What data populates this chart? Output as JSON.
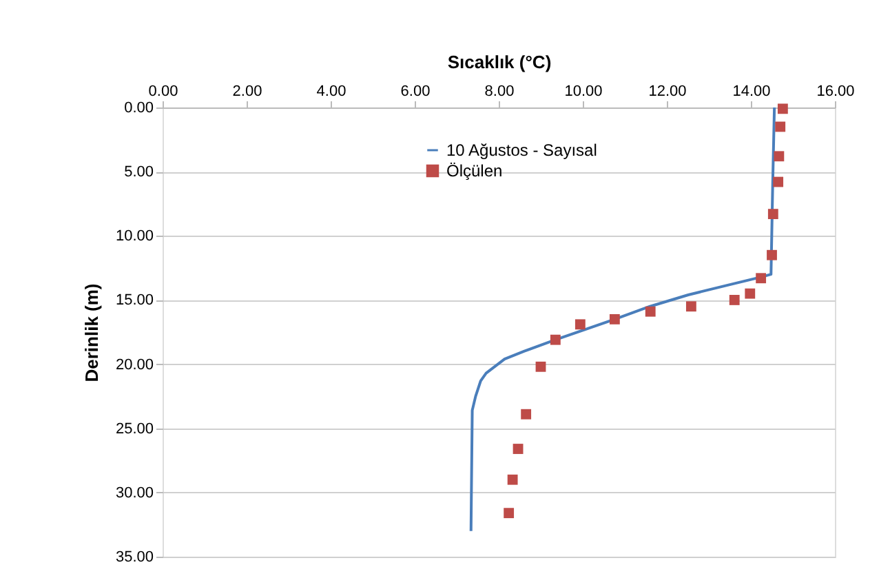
{
  "chart_data": {
    "type": "scatter",
    "title": "Sıcaklık (°C)",
    "ylabel": "Derinlik (m)",
    "xlim": [
      0,
      16
    ],
    "ylim": [
      35,
      0
    ],
    "xticks": [
      {
        "value": 0,
        "label": "0.00"
      },
      {
        "value": 2,
        "label": "2.00"
      },
      {
        "value": 4,
        "label": "4.00"
      },
      {
        "value": 6,
        "label": "6.00"
      },
      {
        "value": 8,
        "label": "8.00"
      },
      {
        "value": 10,
        "label": "10.00"
      },
      {
        "value": 12,
        "label": "12.00"
      },
      {
        "value": 14,
        "label": "14.00"
      },
      {
        "value": 16,
        "label": "16.00"
      }
    ],
    "yticks": [
      {
        "value": 0,
        "label": "0.00"
      },
      {
        "value": 5,
        "label": "5.00"
      },
      {
        "value": 10,
        "label": "10.00"
      },
      {
        "value": 15,
        "label": "15.00"
      },
      {
        "value": 20,
        "label": "20.00"
      },
      {
        "value": 25,
        "label": "25.00"
      },
      {
        "value": 30,
        "label": "30.00"
      },
      {
        "value": 35,
        "label": "35.00"
      }
    ],
    "grid": "y",
    "legend": "top",
    "series": [
      {
        "name": "10 Ağustos - Sayısal",
        "type": "line",
        "color": "#4a7ebb",
        "line_style": "solid",
        "marker": "none",
        "x": [
          14.56,
          14.52,
          14.48,
          14.26,
          13.5,
          12.51,
          11.6,
          10.76,
          9.35,
          8.6,
          8.14,
          7.7,
          7.57,
          7.45,
          7.37,
          7.34
        ],
        "values": [
          0,
          6,
          13.0,
          13.2,
          13.8,
          14.6,
          15.5,
          16.5,
          18.1,
          19.0,
          19.6,
          20.7,
          21.3,
          22.5,
          23.6,
          33.0
        ]
      },
      {
        "name": "Ölçülen",
        "type": "scatter",
        "color": "#be4b48",
        "marker": "square",
        "x": [
          14.76,
          14.7,
          14.67,
          14.65,
          14.53,
          14.5,
          14.24,
          13.98,
          13.61,
          12.58,
          11.61,
          10.76,
          9.94,
          9.35,
          9.0,
          8.65,
          8.46,
          8.33,
          8.24
        ],
        "values": [
          0.1,
          1.5,
          3.8,
          5.8,
          8.3,
          11.5,
          13.3,
          14.5,
          15.0,
          15.5,
          15.9,
          16.5,
          16.9,
          18.1,
          20.2,
          23.9,
          26.6,
          29.0,
          31.6
        ]
      }
    ]
  }
}
